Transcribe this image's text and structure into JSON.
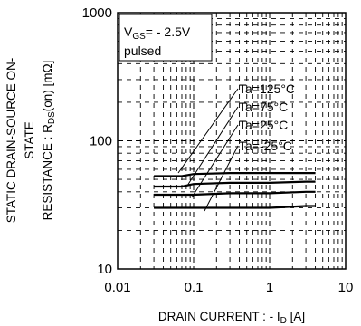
{
  "chart_data": {
    "type": "line",
    "x_scale": "log",
    "y_scale": "log",
    "xlim": [
      0.01,
      10
    ],
    "ylim": [
      10,
      1000
    ],
    "x_ticks": [
      "0.01",
      "0.1",
      "1",
      "10"
    ],
    "y_ticks": [
      "10",
      "100",
      "1000"
    ],
    "xlabel": {
      "pre": "DRAIN CURRENT : - I",
      "sub": "D",
      "post": " [A]"
    },
    "ylabel": {
      "line1": "STATIC DRAIN-SOURCE ON-",
      "line2": "STATE",
      "line3_pre": "RESISTANCE : R",
      "line3_sub": "DS",
      "line3_post": "(on) [mΩ]"
    },
    "conditions": {
      "line1_pre": "V",
      "line1_sub": "GS",
      "line1_post": "= - 2.5V",
      "line2": "pulsed"
    },
    "grid": true,
    "series": [
      {
        "name": "Ta=125°C",
        "x": [
          0.03,
          0.07,
          0.1,
          0.3,
          1,
          3,
          4
        ],
        "y": [
          53,
          53,
          55,
          56,
          56,
          56,
          56
        ]
      },
      {
        "name": "Ta=75°C",
        "x": [
          0.03,
          0.07,
          0.1,
          0.3,
          1,
          3,
          4
        ],
        "y": [
          44,
          44,
          46,
          47,
          47,
          48,
          48
        ]
      },
      {
        "name": "Ta=25°C",
        "x": [
          0.03,
          0.07,
          0.1,
          0.3,
          1,
          3,
          4
        ],
        "y": [
          38,
          38,
          38,
          39,
          39,
          40,
          40
        ]
      },
      {
        "name": "Ta=-25°C",
        "x": [
          0.03,
          0.1,
          0.3,
          1,
          3,
          4
        ],
        "y": [
          30,
          30,
          30,
          30,
          31,
          31
        ]
      }
    ]
  }
}
